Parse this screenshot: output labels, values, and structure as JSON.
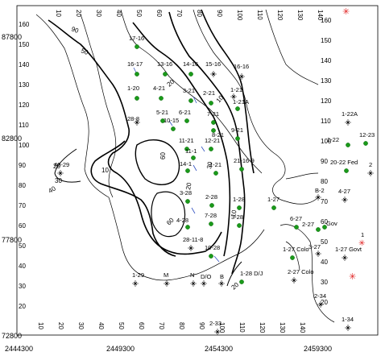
{
  "map": {
    "y_axis_labels": [
      "87800",
      "82800",
      "77800",
      "72800"
    ],
    "x_axis_labels": [
      "2444300",
      "2449300",
      "2454300",
      "2459300"
    ],
    "left_col_numbers": [
      "160",
      "150",
      "140",
      "130",
      "120",
      "110",
      "100",
      "90",
      "80",
      "70",
      "60",
      "50",
      "40",
      "30",
      "20"
    ],
    "right_col_numbers": [
      "160",
      "150",
      "140",
      "130",
      "120",
      "110",
      "100",
      "90",
      "80",
      "70",
      "60",
      "50",
      "40",
      "30",
      "20"
    ],
    "top_row_numbers": [
      "10",
      "20",
      "30",
      "40",
      "50",
      "60",
      "70",
      "80",
      "90",
      "100",
      "110",
      "120",
      "130",
      "140"
    ],
    "bottom_row_numbers": [
      "10",
      "20",
      "30",
      "40",
      "50",
      "60",
      "70",
      "80",
      "90",
      "100",
      "110",
      "120",
      "130",
      "140"
    ],
    "contour_labels": [
      "90",
      "50",
      "40",
      "30",
      "20",
      "10",
      "60",
      "60",
      "20",
      "30",
      "10",
      "20",
      "10",
      "20"
    ],
    "wells": [
      {
        "label": "17-16",
        "type": "producer"
      },
      {
        "label": "16-17",
        "type": "producer"
      },
      {
        "label": "13-16",
        "type": "producer"
      },
      {
        "label": "14-16",
        "type": "producer"
      },
      {
        "label": "15-16",
        "type": "dry"
      },
      {
        "label": "16-16",
        "type": "dry"
      },
      {
        "label": "1-20",
        "type": "producer"
      },
      {
        "label": "4-21",
        "type": "producer"
      },
      {
        "label": "3-21",
        "type": "producer"
      },
      {
        "label": "2-21",
        "type": "producer"
      },
      {
        "label": "1-21",
        "type": "dry"
      },
      {
        "label": "1-21A",
        "type": "producer"
      },
      {
        "label": "5-21",
        "type": "producer"
      },
      {
        "label": "6-21",
        "type": "producer"
      },
      {
        "label": "7-21",
        "type": "producer"
      },
      {
        "label": "8-21",
        "type": "producer"
      },
      {
        "label": "10-15",
        "type": "producer"
      },
      {
        "label": "28-8",
        "type": "dry"
      },
      {
        "label": "9-21",
        "type": "producer"
      },
      {
        "label": "11-21",
        "type": "producer"
      },
      {
        "label": "12-21",
        "type": "producer"
      },
      {
        "label": "11-1",
        "type": "producer"
      },
      {
        "label": "14-1",
        "type": "producer"
      },
      {
        "label": "1-21",
        "type": "producer"
      },
      {
        "label": "21-16-9",
        "type": "producer"
      },
      {
        "label": "1-22A",
        "type": "dry"
      },
      {
        "label": "12-23",
        "type": "producer"
      },
      {
        "label": "1-22",
        "type": "producer"
      },
      {
        "label": "20-22 Fed",
        "type": "producer"
      },
      {
        "label": "2",
        "type": "dry"
      },
      {
        "label": "40-29",
        "type": "dry"
      },
      {
        "label": "3-28",
        "type": "producer"
      },
      {
        "label": "2-28",
        "type": "producer"
      },
      {
        "label": "1-28",
        "type": "producer"
      },
      {
        "label": "1-27",
        "type": "producer"
      },
      {
        "label": "B-2",
        "type": "dry"
      },
      {
        "label": "4-27",
        "type": "dry"
      },
      {
        "label": "4-28",
        "type": "producer"
      },
      {
        "label": "7-28",
        "type": "producer"
      },
      {
        "label": "3-28",
        "type": "producer"
      },
      {
        "label": "6-27",
        "type": "producer"
      },
      {
        "label": "2-27",
        "type": "producer"
      },
      {
        "label": "Gov",
        "type": "producer"
      },
      {
        "label": "1",
        "type": "injector"
      },
      {
        "label": "28-11-8",
        "type": "dry"
      },
      {
        "label": "10-28",
        "type": "producer"
      },
      {
        "label": "3-27",
        "type": "dry"
      },
      {
        "label": "1-27 Colo",
        "type": "producer"
      },
      {
        "label": "1-27 Govt",
        "type": "dry"
      },
      {
        "label": "1-29",
        "type": "dry"
      },
      {
        "label": "M",
        "type": "dry"
      },
      {
        "label": "N",
        "type": "dry"
      },
      {
        "label": "D/O",
        "type": "dry"
      },
      {
        "label": "B",
        "type": "dry"
      },
      {
        "label": "1-28 D/J",
        "type": "producer"
      },
      {
        "label": "2-27 Colo",
        "type": "dry"
      },
      {
        "label": "2-34",
        "type": "dry"
      },
      {
        "label": "1-34",
        "type": "dry"
      },
      {
        "label": "2-33",
        "type": "dry"
      }
    ]
  }
}
